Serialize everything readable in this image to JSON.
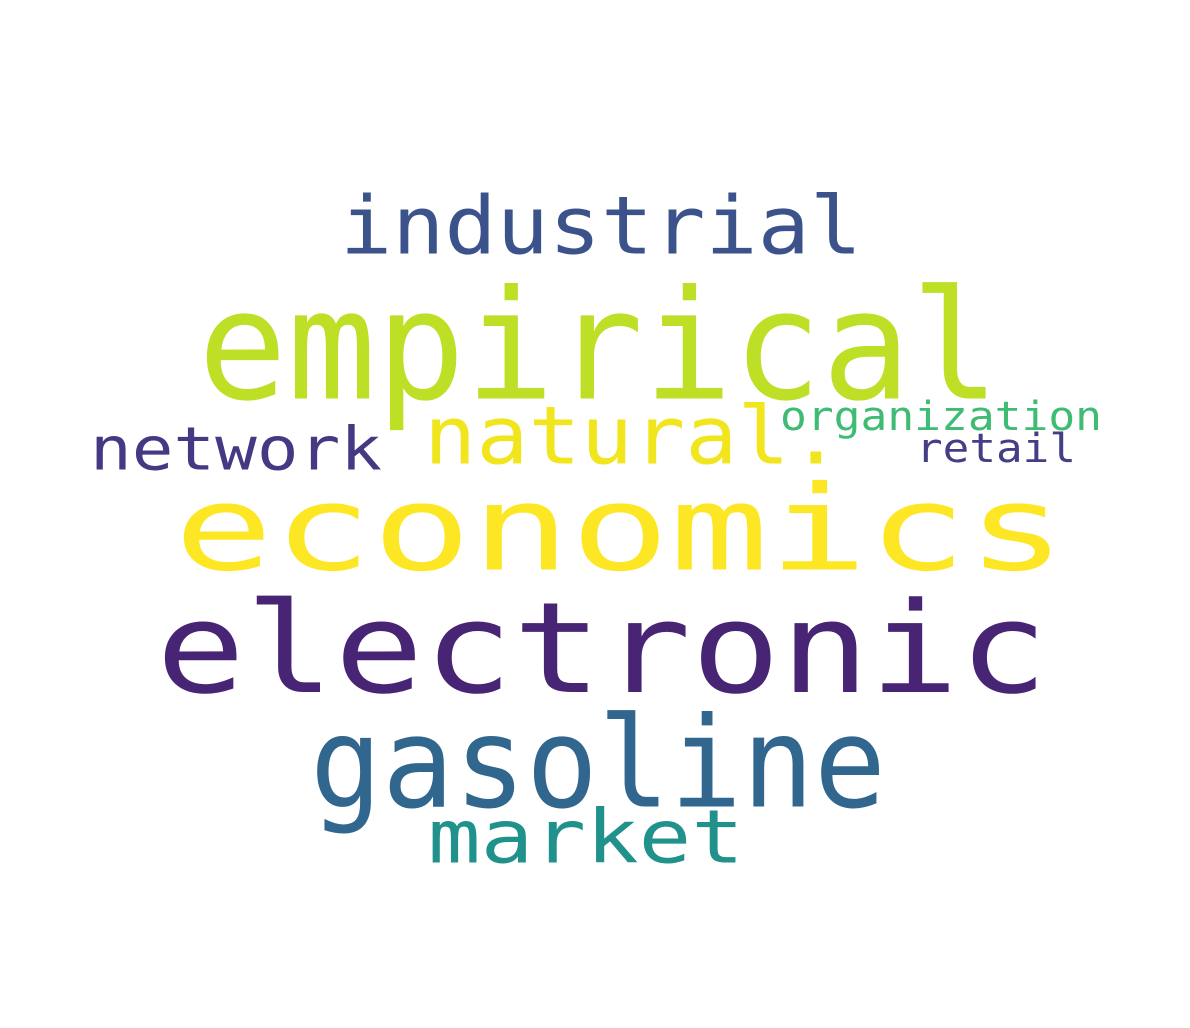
{
  "words": [
    {
      "id": "economics",
      "text": "economics",
      "color": "#fde725"
    },
    {
      "id": "electronic",
      "text": "electronic",
      "color": "#482475"
    },
    {
      "id": "empirical",
      "text": "empirical",
      "color": "#bddf26"
    },
    {
      "id": "gasoline",
      "text": "gasoline",
      "color": "#31668e"
    },
    {
      "id": "industrial",
      "text": "industrial",
      "color": "#3b528b"
    },
    {
      "id": "natural",
      "text": "natural.",
      "color": "#f1e51d"
    },
    {
      "id": "market",
      "text": "market",
      "color": "#21918c"
    },
    {
      "id": "network",
      "text": "network",
      "color": "#443983"
    },
    {
      "id": "organization",
      "text": "organization",
      "color": "#3fbc73"
    },
    {
      "id": "retail",
      "text": "retail",
      "color": "#433e85"
    }
  ]
}
